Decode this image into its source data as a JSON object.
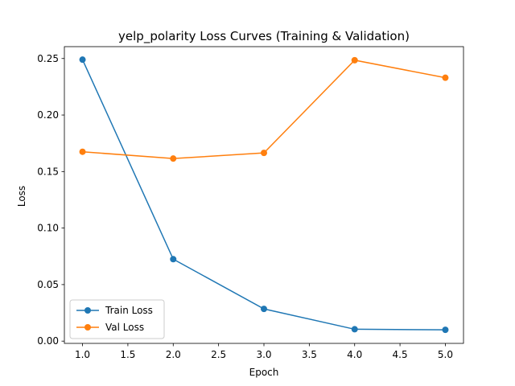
{
  "chart_data": {
    "type": "line",
    "title": "yelp_polarity Loss Curves (Training & Validation)",
    "xlabel": "Epoch",
    "ylabel": "Loss",
    "xlim": [
      0.8,
      5.2
    ],
    "ylim": [
      -0.002,
      0.2605
    ],
    "x_ticks": [
      "1.0",
      "1.5",
      "2.0",
      "2.5",
      "3.0",
      "3.5",
      "4.0",
      "4.5",
      "5.0"
    ],
    "y_ticks": [
      "0.00",
      "0.05",
      "0.10",
      "0.15",
      "0.20",
      "0.25"
    ],
    "grid": false,
    "legend_position": "lower-left",
    "x": [
      1,
      2,
      3,
      4,
      5
    ],
    "series": [
      {
        "name": "Train Loss",
        "color": "#1f77b4",
        "values": [
          0.249,
          0.0725,
          0.0285,
          0.0105,
          0.01
        ]
      },
      {
        "name": "Val Loss",
        "color": "#ff7f0e",
        "values": [
          0.1675,
          0.1615,
          0.1665,
          0.2485,
          0.233
        ]
      }
    ]
  }
}
